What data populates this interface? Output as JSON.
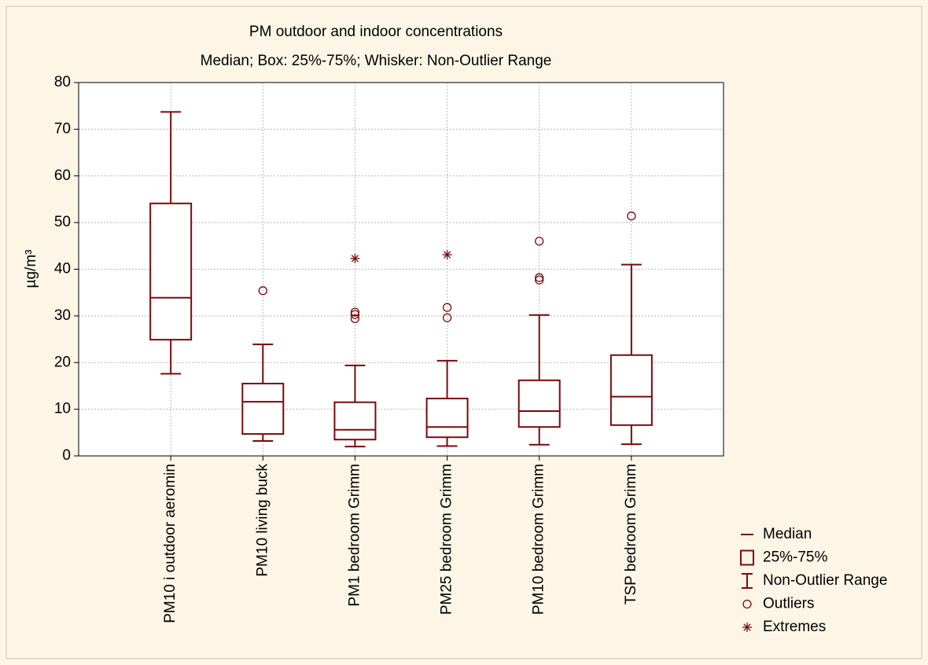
{
  "chart_data": {
    "type": "box",
    "title": "PM outdoor and indoor concentrations",
    "subtitle": "Median; Box: 25%-75%; Whisker: Non-Outlier Range",
    "y_label": "µg/m³",
    "categories": [
      "PM10 i outdoor aeromin",
      "PM10 living buck",
      "PM1 bedroom Grimm",
      "PM25 bedroom Grimm",
      "PM10 bedroom Grimm",
      "TSP bedroom Grimm"
    ],
    "boxes": [
      {
        "min": 17.6,
        "q1": 24.9,
        "median": 33.9,
        "q3": 54.1,
        "max": 73.7,
        "outliers": [],
        "extremes": []
      },
      {
        "min": 3.2,
        "q1": 4.7,
        "median": 11.6,
        "q3": 15.5,
        "max": 23.9,
        "outliers": [
          35.4
        ],
        "extremes": []
      },
      {
        "min": 2.0,
        "q1": 3.5,
        "median": 5.6,
        "q3": 11.5,
        "max": 19.4,
        "outliers": [
          30.8,
          30.3,
          29.4
        ],
        "extremes": [
          42.3
        ]
      },
      {
        "min": 2.1,
        "q1": 4.0,
        "median": 6.2,
        "q3": 12.3,
        "max": 20.4,
        "outliers": [
          31.8,
          29.6
        ],
        "extremes": [
          43.1
        ]
      },
      {
        "min": 2.4,
        "q1": 6.2,
        "median": 9.6,
        "q3": 16.2,
        "max": 30.2,
        "outliers": [
          46.0,
          38.2,
          37.7
        ],
        "extremes": []
      },
      {
        "min": 2.5,
        "q1": 6.6,
        "median": 12.7,
        "q3": 21.6,
        "max": 41.0,
        "outliers": [
          51.4
        ],
        "extremes": []
      }
    ],
    "color": "#7a0a0a",
    "ylim": [
      0,
      80
    ],
    "yticks": [
      0,
      10,
      20,
      30,
      40,
      50,
      60,
      70,
      80
    ],
    "grid": true,
    "legend": {
      "position": "lower right",
      "median": "Median",
      "box": "25%-75%",
      "whisker": "Non-Outlier Range",
      "outliers": "Outliers",
      "extremes": "Extremes"
    }
  }
}
